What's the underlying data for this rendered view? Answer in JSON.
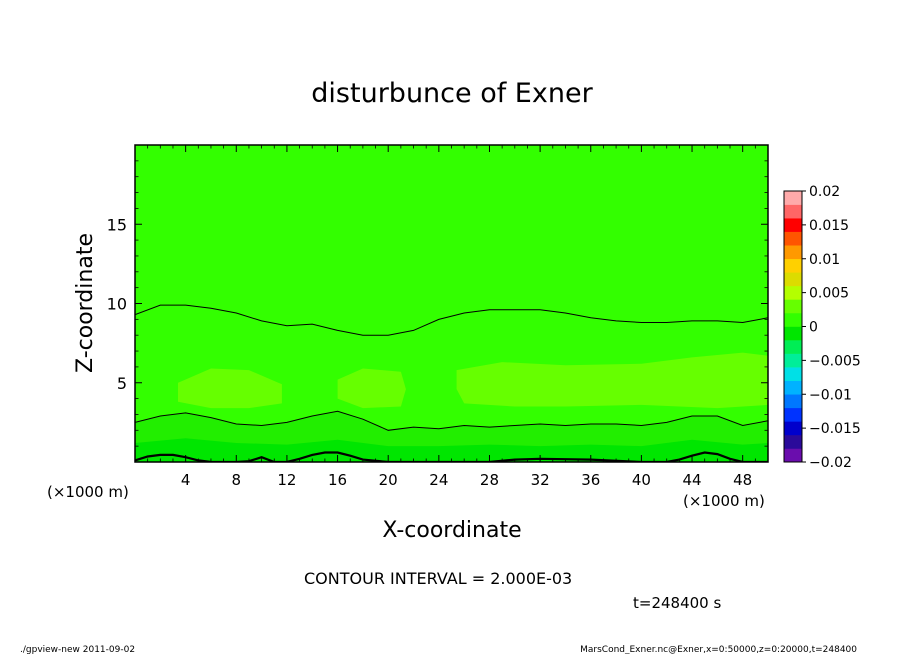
{
  "chart_data": {
    "type": "heatmap",
    "title": "disturbunce of Exner",
    "xlabel": "X-coordinate",
    "ylabel": "Z-coordinate",
    "x_unit": "(×1000 m)",
    "y_unit": "(×1000 m)",
    "xlim": [
      0,
      50
    ],
    "ylim": [
      0,
      20
    ],
    "x_ticks": [
      4,
      8,
      12,
      16,
      20,
      24,
      28,
      32,
      36,
      40,
      44,
      48
    ],
    "y_ticks": [
      5,
      10,
      15
    ],
    "colorbar": {
      "range": [
        -0.02,
        0.02
      ],
      "tick_values": [
        0.02,
        0.015,
        0.01,
        0.005,
        0,
        -0.005,
        -0.01,
        -0.015,
        -0.02
      ],
      "tick_labels": [
        "0.02",
        "0.015",
        "0.01",
        "0.005",
        "0",
        "−0.005",
        "−0.01",
        "−0.015",
        "−0.02"
      ],
      "colors": [
        "#6a0dad",
        "#2a0a9a",
        "#0000cc",
        "#0033ff",
        "#0077ff",
        "#00b2ff",
        "#00e0e6",
        "#00ee99",
        "#00ee55",
        "#00e600",
        "#32ff00",
        "#66ff00",
        "#b4ff00",
        "#dcdc00",
        "#ffd000",
        "#ff9900",
        "#ff5500",
        "#ff0000",
        "#ff6666",
        "#ffaaaa"
      ]
    },
    "contour_interval": "2.000E-03",
    "levels": [
      {
        "range": [
          0.0,
          0.002
        ],
        "color": "#33ff00"
      },
      {
        "range": [
          0.002,
          0.004
        ],
        "color": "#66ff00"
      },
      {
        "range": [
          -0.002,
          0.0
        ],
        "color": "#22ee00"
      },
      {
        "range": [
          -0.004,
          -0.002
        ],
        "color": "#00e600"
      }
    ],
    "contours": [
      {
        "level": 0.0,
        "x": [
          0,
          2,
          4,
          6,
          8,
          10,
          12,
          14,
          16,
          18,
          20,
          22,
          24,
          26,
          28,
          30,
          32,
          34,
          36,
          38,
          40,
          42,
          44,
          46,
          48,
          50
        ],
        "z": [
          9.3,
          9.9,
          9.9,
          9.7,
          9.4,
          8.9,
          8.6,
          8.7,
          8.3,
          8.0,
          8.0,
          8.3,
          9.0,
          9.4,
          9.6,
          9.6,
          9.6,
          9.4,
          9.1,
          8.9,
          8.8,
          8.8,
          8.9,
          8.9,
          8.8,
          9.1
        ]
      },
      {
        "level": -0.002,
        "x": [
          0,
          2,
          4,
          6,
          8,
          10,
          12,
          14,
          16,
          18,
          20,
          22,
          24,
          26,
          28,
          30,
          32,
          34,
          36,
          38,
          40,
          42,
          44,
          46,
          48,
          50
        ],
        "z": [
          2.5,
          2.9,
          3.1,
          2.8,
          2.4,
          2.3,
          2.5,
          2.9,
          3.2,
          2.7,
          2.0,
          2.2,
          2.1,
          2.3,
          2.2,
          2.3,
          2.4,
          2.3,
          2.4,
          2.4,
          2.3,
          2.5,
          2.9,
          2.9,
          2.3,
          2.6
        ]
      },
      {
        "level": -0.004,
        "x": [
          0,
          1,
          2,
          3,
          4,
          5,
          6,
          8,
          9,
          10,
          11,
          12,
          13,
          14,
          15,
          16,
          17,
          18,
          20,
          28,
          30,
          32,
          36,
          40,
          42,
          43,
          44,
          45,
          46,
          47,
          48,
          50
        ],
        "z": [
          0.1,
          0.35,
          0.45,
          0.45,
          0.3,
          0.1,
          0.0,
          0.0,
          0.05,
          0.3,
          0.0,
          0.0,
          0.2,
          0.45,
          0.6,
          0.6,
          0.4,
          0.15,
          0.0,
          0.0,
          0.15,
          0.2,
          0.15,
          0.0,
          0.0,
          0.15,
          0.4,
          0.6,
          0.5,
          0.2,
          0.0,
          0.0
        ]
      }
    ],
    "t_label": "t=248400 s"
  },
  "footer": {
    "left": "./gpview-new  2011-09-02",
    "right": "MarsCond_Exner.nc@Exner,x=0:50000,z=0:20000,t=248400"
  }
}
